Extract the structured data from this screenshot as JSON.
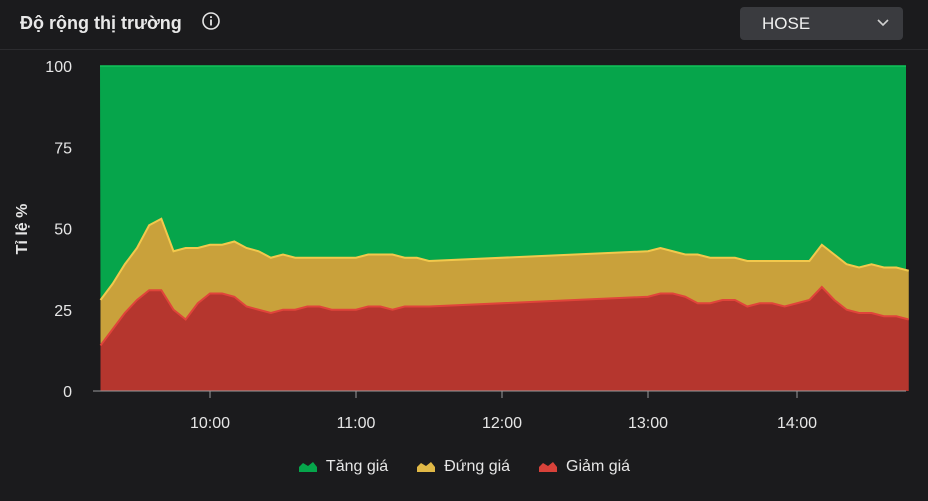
{
  "header": {
    "title": "Độ rộng thị trường",
    "info_icon": "info-icon",
    "exchange_selected": "HOSE",
    "dropdown_icon": "chevron-down-icon"
  },
  "colors": {
    "background": "#1b1b1d",
    "up": "#06a54b",
    "flat": "#c9a13b",
    "down": "#b5362e",
    "flat_line": "#f2c94c",
    "down_line": "#e0443a"
  },
  "chart_data": {
    "type": "area",
    "stacked": true,
    "percent_stacked": true,
    "title": "",
    "xlabel": "",
    "ylabel": "Tỉ lệ %",
    "ylim": [
      0,
      100
    ],
    "yticks": [
      0,
      25,
      50,
      75,
      100
    ],
    "xticks": [
      "10:00",
      "11:00",
      "12:00",
      "13:00",
      "14:00"
    ],
    "x": [
      "9:15",
      "9:20",
      "9:25",
      "9:30",
      "9:35",
      "9:40",
      "9:45",
      "9:50",
      "9:55",
      "10:00",
      "10:05",
      "10:10",
      "10:15",
      "10:20",
      "10:25",
      "10:30",
      "10:35",
      "10:40",
      "10:45",
      "10:50",
      "10:55",
      "11:00",
      "11:05",
      "11:10",
      "11:15",
      "11:20",
      "11:25",
      "11:30",
      "13:00",
      "13:05",
      "13:10",
      "13:15",
      "13:20",
      "13:25",
      "13:30",
      "13:35",
      "13:40",
      "13:45",
      "13:50",
      "13:55",
      "14:00",
      "14:05",
      "14:10",
      "14:15",
      "14:20",
      "14:25",
      "14:30",
      "14:35",
      "14:40",
      "14:45"
    ],
    "series": [
      {
        "name": "Giảm giá",
        "values": [
          14,
          19,
          24,
          28,
          31,
          31,
          25,
          22,
          27,
          30,
          30,
          29,
          26,
          25,
          24,
          25,
          25,
          26,
          26,
          25,
          25,
          25,
          26,
          26,
          25,
          26,
          26,
          26,
          29,
          30,
          30,
          29,
          27,
          27,
          28,
          28,
          26,
          27,
          27,
          26,
          27,
          28,
          32,
          28,
          25,
          24,
          24,
          23,
          23,
          22
        ]
      },
      {
        "name": "Đứng giá",
        "values": [
          14,
          14,
          15,
          16,
          20,
          22,
          18,
          22,
          17,
          15,
          15,
          17,
          18,
          18,
          17,
          17,
          16,
          15,
          15,
          16,
          16,
          16,
          16,
          16,
          17,
          15,
          15,
          14,
          14,
          14,
          13,
          13,
          15,
          14,
          13,
          13,
          14,
          13,
          13,
          14,
          13,
          12,
          13,
          14,
          14,
          14,
          15,
          15,
          15,
          15
        ]
      },
      {
        "name": "Tăng giá",
        "values": [
          72,
          67,
          61,
          56,
          49,
          47,
          57,
          56,
          56,
          55,
          55,
          54,
          56,
          57,
          59,
          58,
          59,
          59,
          59,
          59,
          59,
          59,
          58,
          58,
          58,
          59,
          59,
          60,
          57,
          56,
          57,
          58,
          58,
          59,
          59,
          59,
          60,
          60,
          60,
          60,
          60,
          60,
          55,
          58,
          61,
          62,
          61,
          62,
          62,
          63
        ]
      }
    ],
    "legend_position": "bottom-center",
    "grid": false
  },
  "legend": [
    {
      "label": "Tăng giá",
      "color": "#06a54b"
    },
    {
      "label": "Đứng giá",
      "color": "#e0b846"
    },
    {
      "label": "Giảm giá",
      "color": "#d8423a"
    }
  ]
}
